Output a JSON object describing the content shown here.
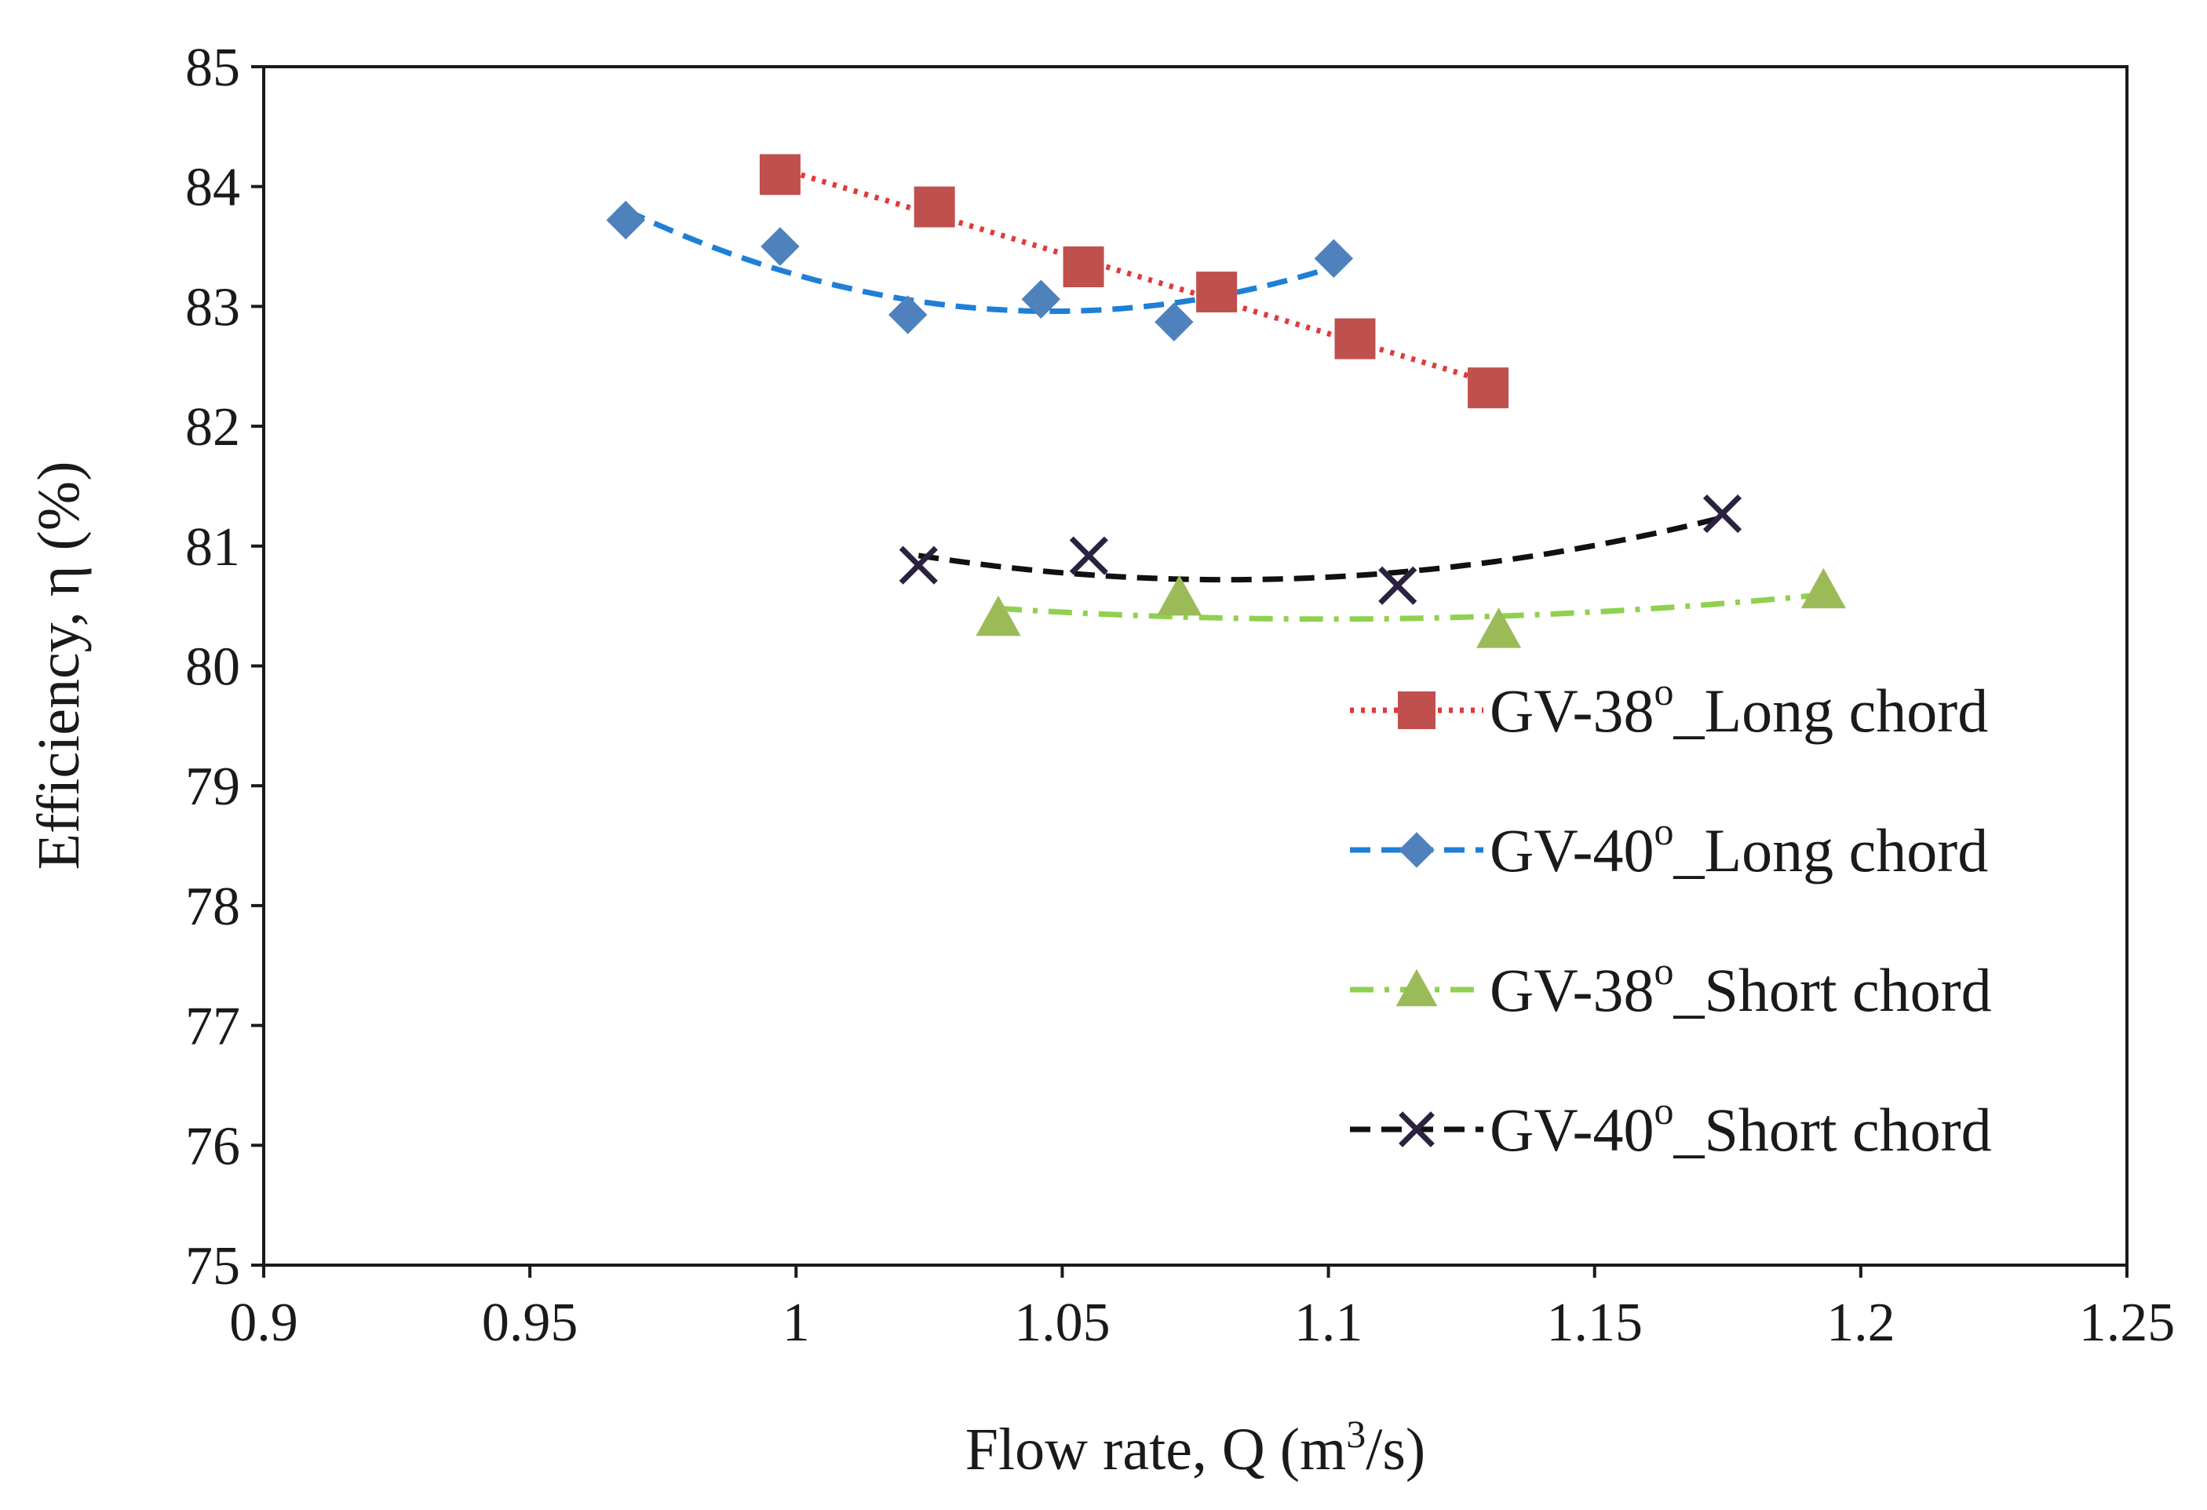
{
  "chart_data": {
    "type": "scatter",
    "title": "",
    "xlabel": "Flow rate, Q (m",
    "xlabel_sup": "3",
    "xlabel_end": "/s)",
    "ylabel": "Efficiency, η (%)",
    "xlim": [
      0.9,
      1.25
    ],
    "ylim": [
      75,
      85
    ],
    "xticks": [
      0.9,
      0.95,
      1,
      1.05,
      1.1,
      1.15,
      1.2,
      1.25
    ],
    "xtick_labels": [
      "0.9",
      "0.95",
      "1",
      "1.05",
      "1.1",
      "1.15",
      "1.2",
      "1.25"
    ],
    "yticks": [
      75,
      76,
      77,
      78,
      79,
      80,
      81,
      82,
      83,
      84,
      85
    ],
    "ytick_labels": [
      "75",
      "76",
      "77",
      "78",
      "79",
      "80",
      "81",
      "82",
      "83",
      "84",
      "85"
    ],
    "grid": false,
    "legend_position": "right",
    "series": [
      {
        "name": "GV-38_Long chord",
        "label_a": "GV-38",
        "label_sup": "o",
        "label_b": "_Long chord",
        "marker": "square",
        "color": "#c0504d",
        "line_color": "#e03a3a",
        "line_style": "dotted",
        "trend": "linear",
        "x": [
          0.997,
          1.026,
          1.054,
          1.079,
          1.105,
          1.13
        ],
        "y": [
          84.1,
          83.83,
          83.33,
          83.12,
          82.73,
          82.32
        ]
      },
      {
        "name": "GV-40_Long chord",
        "label_a": "GV-40",
        "label_sup": "o",
        "label_b": "_Long chord",
        "marker": "diamond",
        "color": "#4f81bd",
        "line_color": "#1f7fd6",
        "line_style": "dashed",
        "trend": "quadratic",
        "x": [
          0.968,
          0.997,
          1.021,
          1.046,
          1.071,
          1.101
        ],
        "y": [
          83.72,
          83.5,
          82.93,
          83.06,
          82.87,
          83.4
        ]
      },
      {
        "name": "GV-38_Short chord",
        "label_a": "GV-38",
        "label_sup": "o",
        "label_b": "_Short chord",
        "marker": "triangle",
        "color": "#9bbb59",
        "line_color": "#8fd14f",
        "line_style": "dashdot",
        "trend": "quadratic",
        "x": [
          1.038,
          1.072,
          1.132,
          1.193
        ],
        "y": [
          80.4,
          80.57,
          80.3,
          80.63
        ]
      },
      {
        "name": "GV-40_Short chord",
        "label_a": "GV-40",
        "label_sup": "o",
        "label_b": "_Short chord",
        "marker": "x",
        "color": "#2b2240",
        "line_color": "#111111",
        "line_style": "dashed",
        "trend": "quadratic",
        "x": [
          1.023,
          1.055,
          1.113,
          1.174
        ],
        "y": [
          80.84,
          80.92,
          80.67,
          81.27
        ]
      }
    ]
  }
}
